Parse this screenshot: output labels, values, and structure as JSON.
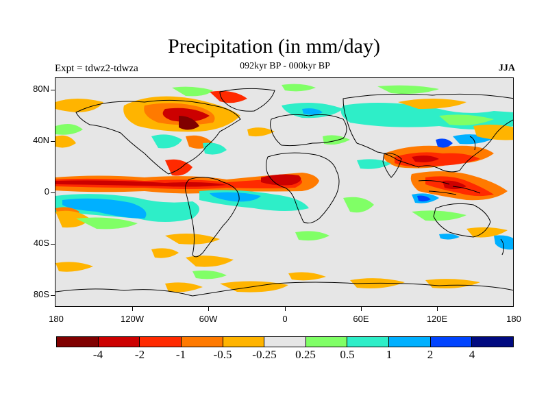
{
  "title": "Precipitation (in mm/day)",
  "subtitle_left": "Expt = tdwz2-tdwza",
  "subtitle_center": "092kyr BP - 000kyr BP",
  "subtitle_right": "JJA",
  "map": {
    "projection": "cylindrical-equidistant",
    "background": "#e6e6e6",
    "lat_ticks": [
      "80N",
      "40N",
      "0",
      "40S",
      "80S"
    ],
    "lon_ticks": [
      "180",
      "120W",
      "60W",
      "0",
      "60E",
      "120E",
      "180"
    ]
  },
  "colorbar": {
    "colors": [
      "#800000",
      "#cc0000",
      "#ff2a00",
      "#ff7a00",
      "#ffb400",
      "#e6e6e6",
      "#80ff66",
      "#2eeec8",
      "#00b0ff",
      "#0044ff",
      "#000a80"
    ],
    "labels": [
      "-4",
      "-2",
      "-1",
      "-0.5",
      "-0.25",
      "0.25",
      "0.5",
      "1",
      "2",
      "4"
    ]
  }
}
